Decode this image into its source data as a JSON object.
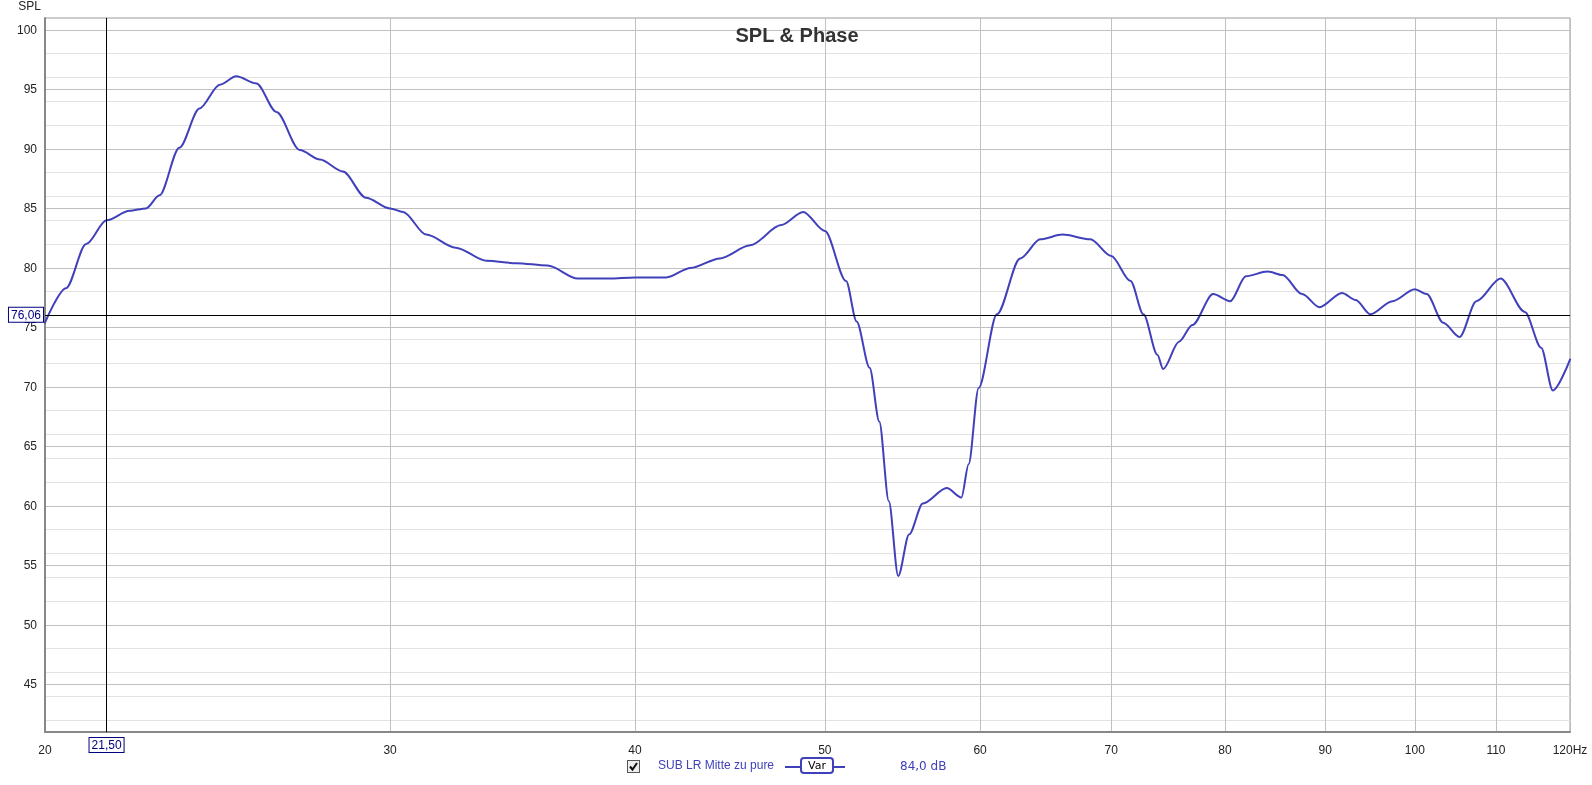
{
  "chart_data": {
    "type": "line",
    "title": "SPL & Phase",
    "ylabel": "SPL",
    "xlim": [
      20,
      120
    ],
    "ylim": [
      41,
      101
    ],
    "log": "x",
    "grid": true,
    "legend": "bottom",
    "marker": "none",
    "line_style": "solid",
    "xticks": [
      20,
      30,
      40,
      50,
      60,
      70,
      80,
      90,
      100,
      110,
      {
        "value": 120,
        "label": "120Hz"
      }
    ],
    "yticks": [
      45,
      50,
      55,
      60,
      65,
      70,
      75,
      80,
      85,
      90,
      95,
      100
    ],
    "ref_lines": [
      {
        "axis": "x",
        "value": 21.5,
        "label": "21,50",
        "color": "#000000"
      },
      {
        "axis": "y",
        "value": 76.06,
        "label": "76,06",
        "color": "#000000"
      }
    ],
    "annotations": [
      "Var",
      "84,0 dB"
    ],
    "series": [
      {
        "name": "SUB LR Mitte zu pure",
        "color": "#4040bb",
        "x": [
          20.0,
          20.5,
          20.99,
          21.5,
          22.09,
          22.52,
          22.88,
          23.42,
          23.98,
          24.56,
          25.04,
          25.64,
          26.25,
          26.98,
          27.63,
          28.38,
          29.16,
          30.0,
          30.46,
          31.3,
          32.4,
          33.6,
          34.8,
          36.1,
          37.4,
          38.8,
          40.0,
          41.5,
          42.7,
          44.2,
          45.8,
          47.5,
          48.74,
          50.0,
          51.26,
          51.9,
          52.7,
          53.3,
          53.9,
          54.5,
          55.2,
          56.1,
          57.7,
          58.7,
          59.2,
          59.9,
          61.2,
          62.9,
          64.4,
          66.1,
          68.3,
          70.0,
          71.6,
          72.7,
          73.9,
          74.4,
          75.8,
          77.0,
          78.9,
          80.5,
          82.0,
          84.1,
          85.6,
          87.6,
          89.4,
          91.8,
          93.3,
          94.9,
          97.4,
          100.0,
          101.4,
          103.4,
          105.4,
          107.5,
          110.6,
          113.8,
          116.0,
          117.6,
          120.0
        ],
        "values": [
          75.4,
          78.3,
          82.0,
          84.0,
          84.8,
          85.0,
          86.1,
          90.1,
          93.4,
          95.4,
          96.1,
          95.5,
          93.1,
          89.9,
          89.1,
          88.1,
          85.9,
          85.0,
          84.7,
          82.8,
          81.7,
          80.6,
          80.4,
          80.2,
          79.1,
          79.1,
          79.2,
          79.2,
          80.0,
          80.8,
          81.9,
          83.6,
          84.7,
          83.1,
          78.9,
          75.5,
          71.6,
          67.1,
          60.4,
          54.1,
          57.6,
          60.2,
          61.5,
          60.7,
          63.5,
          69.9,
          76.1,
          80.8,
          82.4,
          82.8,
          82.4,
          81.0,
          78.9,
          76.1,
          72.7,
          71.5,
          73.8,
          75.2,
          77.8,
          77.2,
          79.3,
          79.7,
          79.4,
          77.8,
          76.7,
          77.9,
          77.3,
          76.1,
          77.2,
          78.2,
          77.8,
          75.4,
          74.2,
          77.2,
          79.1,
          76.3,
          73.3,
          69.7,
          72.3
        ]
      }
    ]
  }
}
